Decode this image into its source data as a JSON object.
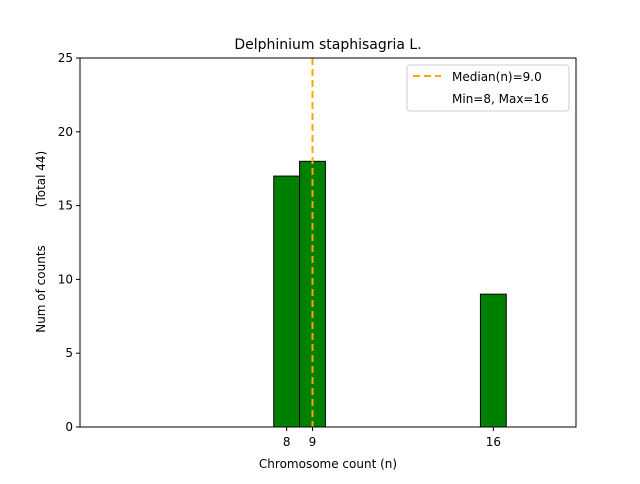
{
  "chart_data": {
    "type": "bar",
    "title": "Delphinium staphisagria L.",
    "xlabel": "Chromosome count (n)",
    "ylabel": "Num of counts",
    "ylabel2": "(Total 44)",
    "x": [
      8,
      9,
      16
    ],
    "values": [
      17,
      18,
      9
    ],
    "xticks": [
      8,
      9,
      16
    ],
    "yticks": [
      0,
      5,
      10,
      15,
      20,
      25
    ],
    "xlim": [
      0,
      19.2
    ],
    "ylim": [
      0,
      25
    ],
    "bar_color": "#008000",
    "median": 9.0,
    "median_color": "#ffa500",
    "legend": {
      "placement": "top-right",
      "entries": [
        "Median(n)=9.0",
        "Min=8, Max=16"
      ]
    },
    "grid": false
  }
}
